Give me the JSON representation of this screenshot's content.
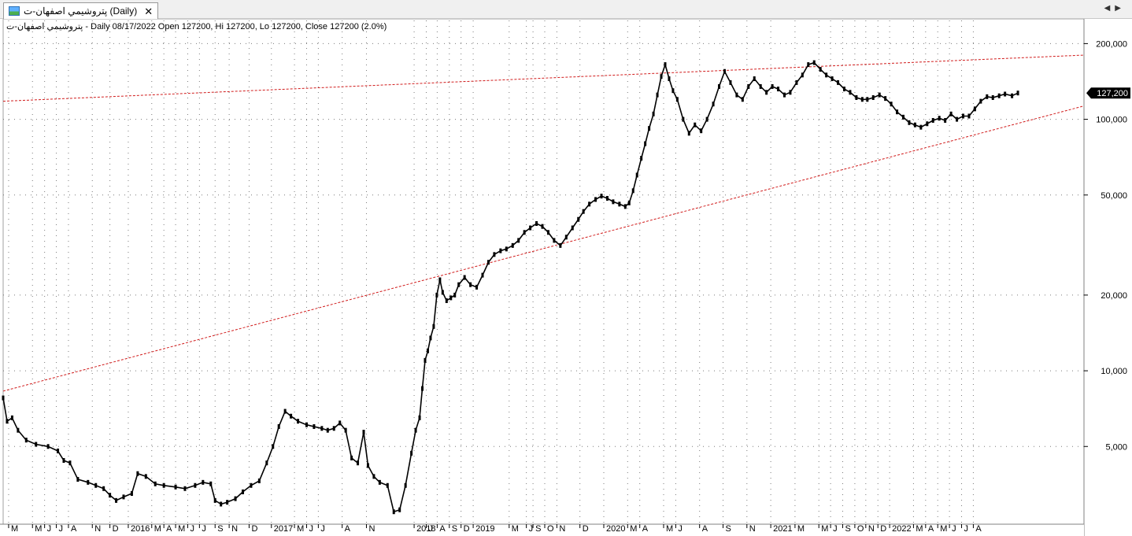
{
  "window": {
    "tab_title": "پتروشيمي اصفهان-ت (Daily)",
    "close_glyph": "✕",
    "scroll_left_glyph": "◀",
    "scroll_right_glyph": "▶"
  },
  "info_line": "پتروشيمي اصفهان-ت - Daily 08/17/2022 Open 127200, Hi 127200, Lo 127200, Close 127200 (2.0%)",
  "colors": {
    "price": "#000000",
    "trendline": "#d11c1c",
    "grid": "#7a7a7a",
    "badge": "#000000"
  },
  "chart_data": {
    "type": "line",
    "title": "",
    "xlabel": "",
    "ylabel": "",
    "y_scale": "log",
    "ylim": [
      2600,
      230000
    ],
    "xlim": [
      "2015-02-15",
      "2022-09-10"
    ],
    "grid": true,
    "last_value_label": "127,200",
    "last_value": 127200,
    "y_ticks": [
      {
        "value": 200000,
        "label": "200,000"
      },
      {
        "value": 100000,
        "label": "100,000"
      },
      {
        "value": 50000,
        "label": "50,000"
      },
      {
        "value": 20000,
        "label": "20,000"
      },
      {
        "value": 10000,
        "label": "10,000"
      },
      {
        "value": 5000,
        "label": "5,000"
      }
    ],
    "x_ticks": [
      {
        "date": "2015-03-01",
        "label": "M"
      },
      {
        "date": "2015-05-01",
        "label": "M"
      },
      {
        "date": "2015-06-01",
        "label": "J"
      },
      {
        "date": "2015-07-01",
        "label": "J"
      },
      {
        "date": "2015-08-01",
        "label": "A"
      },
      {
        "date": "2015-10-01",
        "label": "N"
      },
      {
        "date": "2015-11-15",
        "label": "D"
      },
      {
        "date": "2016-01-01",
        "label": "2016"
      },
      {
        "date": "2016-03-01",
        "label": "M"
      },
      {
        "date": "2016-04-01",
        "label": "A"
      },
      {
        "date": "2016-05-01",
        "label": "M"
      },
      {
        "date": "2016-06-01",
        "label": "J"
      },
      {
        "date": "2016-07-01",
        "label": "J"
      },
      {
        "date": "2016-08-10",
        "label": "S"
      },
      {
        "date": "2016-09-15",
        "label": "N"
      },
      {
        "date": "2016-11-05",
        "label": "D"
      },
      {
        "date": "2017-01-01",
        "label": "2017"
      },
      {
        "date": "2017-03-01",
        "label": "M"
      },
      {
        "date": "2017-04-01",
        "label": "J"
      },
      {
        "date": "2017-05-01",
        "label": "J"
      },
      {
        "date": "2017-07-01",
        "label": "A"
      },
      {
        "date": "2017-09-01",
        "label": "N"
      },
      {
        "date": "2018-01-01",
        "label": "2018"
      },
      {
        "date": "2018-02-01",
        "label": "J"
      },
      {
        "date": "2018-03-01",
        "label": "A"
      },
      {
        "date": "2018-04-01",
        "label": "S"
      },
      {
        "date": "2018-05-01",
        "label": "D"
      },
      {
        "date": "2018-06-01",
        "label": "2019"
      },
      {
        "date": "2018-09-01",
        "label": "M"
      },
      {
        "date": "2018-10-15",
        "label": "J"
      },
      {
        "date": "2018-11-01",
        "label": "S"
      },
      {
        "date": "2018-12-01",
        "label": "O"
      },
      {
        "date": "2019-01-01",
        "label": "N"
      },
      {
        "date": "2019-03-01",
        "label": "D"
      },
      {
        "date": "2019-05-01",
        "label": "2020"
      },
      {
        "date": "2019-07-01",
        "label": "M"
      },
      {
        "date": "2019-08-01",
        "label": "A"
      },
      {
        "date": "2019-10-01",
        "label": "M"
      },
      {
        "date": "2019-11-01",
        "label": "J"
      },
      {
        "date": "2020-01-01",
        "label": "A"
      },
      {
        "date": "2020-03-01",
        "label": "S"
      },
      {
        "date": "2020-05-01",
        "label": "N"
      },
      {
        "date": "2020-07-01",
        "label": "2021"
      },
      {
        "date": "2020-09-01",
        "label": "M"
      },
      {
        "date": "2020-11-01",
        "label": "M"
      },
      {
        "date": "2020-12-01",
        "label": "J"
      },
      {
        "date": "2021-01-01",
        "label": "S"
      },
      {
        "date": "2021-02-01",
        "label": "O"
      },
      {
        "date": "2021-03-01",
        "label": "N"
      },
      {
        "date": "2021-04-01",
        "label": "D"
      },
      {
        "date": "2021-05-01",
        "label": "2022"
      },
      {
        "date": "2021-07-01",
        "label": "M"
      },
      {
        "date": "2021-08-01",
        "label": "A"
      },
      {
        "date": "2021-09-01",
        "label": "M"
      },
      {
        "date": "2021-10-01",
        "label": "J"
      },
      {
        "date": "2021-11-01",
        "label": "J"
      },
      {
        "date": "2021-12-01",
        "label": "A"
      }
    ],
    "series": [
      {
        "points": [
          [
            "2015-02-15",
            7800
          ],
          [
            "2015-02-25",
            6300
          ],
          [
            "2015-03-10",
            6500
          ],
          [
            "2015-03-25",
            5800
          ],
          [
            "2015-04-15",
            5300
          ],
          [
            "2015-05-10",
            5100
          ],
          [
            "2015-06-10",
            5000
          ],
          [
            "2015-07-05",
            4800
          ],
          [
            "2015-07-20",
            4400
          ],
          [
            "2015-08-05",
            4300
          ],
          [
            "2015-08-25",
            3700
          ],
          [
            "2015-09-20",
            3600
          ],
          [
            "2015-10-10",
            3500
          ],
          [
            "2015-10-30",
            3400
          ],
          [
            "2015-11-15",
            3200
          ],
          [
            "2015-12-01",
            3050
          ],
          [
            "2015-12-20",
            3150
          ],
          [
            "2016-01-10",
            3250
          ],
          [
            "2016-01-25",
            3900
          ],
          [
            "2016-02-15",
            3800
          ],
          [
            "2016-03-10",
            3550
          ],
          [
            "2016-04-01",
            3500
          ],
          [
            "2016-05-01",
            3450
          ],
          [
            "2016-05-25",
            3400
          ],
          [
            "2016-06-20",
            3500
          ],
          [
            "2016-07-10",
            3600
          ],
          [
            "2016-07-30",
            3550
          ],
          [
            "2016-08-10",
            3050
          ],
          [
            "2016-08-25",
            2950
          ],
          [
            "2016-09-10",
            3000
          ],
          [
            "2016-10-01",
            3100
          ],
          [
            "2016-10-20",
            3300
          ],
          [
            "2016-11-10",
            3500
          ],
          [
            "2016-12-01",
            3650
          ],
          [
            "2016-12-20",
            4300
          ],
          [
            "2017-01-05",
            5000
          ],
          [
            "2017-01-20",
            6000
          ],
          [
            "2017-02-05",
            6900
          ],
          [
            "2017-02-20",
            6600
          ],
          [
            "2017-03-10",
            6300
          ],
          [
            "2017-04-01",
            6100
          ],
          [
            "2017-04-20",
            6000
          ],
          [
            "2017-05-10",
            5900
          ],
          [
            "2017-05-25",
            5800
          ],
          [
            "2017-06-10",
            5900
          ],
          [
            "2017-06-25",
            6200
          ],
          [
            "2017-07-10",
            5800
          ],
          [
            "2017-07-25",
            4500
          ],
          [
            "2017-08-10",
            4300
          ],
          [
            "2017-08-25",
            5700
          ],
          [
            "2017-09-05",
            4200
          ],
          [
            "2017-09-20",
            3800
          ],
          [
            "2017-10-05",
            3600
          ],
          [
            "2017-10-25",
            3500
          ],
          [
            "2017-11-10",
            2750
          ],
          [
            "2017-11-25",
            2800
          ],
          [
            "2017-12-10",
            3500
          ],
          [
            "2017-12-25",
            4700
          ],
          [
            "2018-01-05",
            5800
          ],
          [
            "2018-01-15",
            6500
          ],
          [
            "2018-01-22",
            8500
          ],
          [
            "2018-01-29",
            11000
          ],
          [
            "2018-02-05",
            12000
          ],
          [
            "2018-02-12",
            13500
          ],
          [
            "2018-02-20",
            15000
          ],
          [
            "2018-02-28",
            20000
          ],
          [
            "2018-03-08",
            23000
          ],
          [
            "2018-03-15",
            20500
          ],
          [
            "2018-03-25",
            19000
          ],
          [
            "2018-04-05",
            19500
          ],
          [
            "2018-04-15",
            20000
          ],
          [
            "2018-04-25",
            22000
          ],
          [
            "2018-05-10",
            23500
          ],
          [
            "2018-05-25",
            22000
          ],
          [
            "2018-06-10",
            21500
          ],
          [
            "2018-06-25",
            24000
          ],
          [
            "2018-07-10",
            27000
          ],
          [
            "2018-07-25",
            29000
          ],
          [
            "2018-08-10",
            30000
          ],
          [
            "2018-08-25",
            30500
          ],
          [
            "2018-09-10",
            31500
          ],
          [
            "2018-09-25",
            33000
          ],
          [
            "2018-10-10",
            35500
          ],
          [
            "2018-10-25",
            37000
          ],
          [
            "2018-11-10",
            38500
          ],
          [
            "2018-11-25",
            37500
          ],
          [
            "2018-12-10",
            35500
          ],
          [
            "2018-12-25",
            33000
          ],
          [
            "2019-01-10",
            31500
          ],
          [
            "2019-01-25",
            34000
          ],
          [
            "2019-02-10",
            37000
          ],
          [
            "2019-02-25",
            40000
          ],
          [
            "2019-03-10",
            43000
          ],
          [
            "2019-03-25",
            46000
          ],
          [
            "2019-04-10",
            48000
          ],
          [
            "2019-04-25",
            49500
          ],
          [
            "2019-05-10",
            48500
          ],
          [
            "2019-05-25",
            47000
          ],
          [
            "2019-06-10",
            46000
          ],
          [
            "2019-06-25",
            45000
          ],
          [
            "2019-07-05",
            46500
          ],
          [
            "2019-07-15",
            52000
          ],
          [
            "2019-07-25",
            60000
          ],
          [
            "2019-08-05",
            70000
          ],
          [
            "2019-08-15",
            80000
          ],
          [
            "2019-08-25",
            92000
          ],
          [
            "2019-09-05",
            105000
          ],
          [
            "2019-09-15",
            125000
          ],
          [
            "2019-09-25",
            148000
          ],
          [
            "2019-10-05",
            165000
          ],
          [
            "2019-10-15",
            145000
          ],
          [
            "2019-10-25",
            130000
          ],
          [
            "2019-11-05",
            120000
          ],
          [
            "2019-11-20",
            100000
          ],
          [
            "2019-12-05",
            88000
          ],
          [
            "2019-12-20",
            95000
          ],
          [
            "2020-01-05",
            90000
          ],
          [
            "2020-01-20",
            100000
          ],
          [
            "2020-02-05",
            115000
          ],
          [
            "2020-02-20",
            135000
          ],
          [
            "2020-03-05",
            155000
          ],
          [
            "2020-03-20",
            140000
          ],
          [
            "2020-04-05",
            125000
          ],
          [
            "2020-04-20",
            120000
          ],
          [
            "2020-05-05",
            135000
          ],
          [
            "2020-05-20",
            145000
          ],
          [
            "2020-06-05",
            135000
          ],
          [
            "2020-06-20",
            128000
          ],
          [
            "2020-07-05",
            135000
          ],
          [
            "2020-07-20",
            132000
          ],
          [
            "2020-08-05",
            125000
          ],
          [
            "2020-08-20",
            128000
          ],
          [
            "2020-09-05",
            140000
          ],
          [
            "2020-09-20",
            150000
          ],
          [
            "2020-10-05",
            165000
          ],
          [
            "2020-10-20",
            168000
          ],
          [
            "2020-11-05",
            158000
          ],
          [
            "2020-11-20",
            150000
          ],
          [
            "2020-12-05",
            145000
          ],
          [
            "2020-12-20",
            140000
          ],
          [
            "2021-01-05",
            132000
          ],
          [
            "2021-01-20",
            128000
          ],
          [
            "2021-02-05",
            122000
          ],
          [
            "2021-02-20",
            120000
          ],
          [
            "2021-03-05",
            120000
          ],
          [
            "2021-03-20",
            122000
          ],
          [
            "2021-04-05",
            125000
          ],
          [
            "2021-04-20",
            121000
          ],
          [
            "2021-05-05",
            115000
          ],
          [
            "2021-05-20",
            107000
          ],
          [
            "2021-06-05",
            102000
          ],
          [
            "2021-06-20",
            97000
          ],
          [
            "2021-07-05",
            95000
          ],
          [
            "2021-07-20",
            93000
          ],
          [
            "2021-08-05",
            96000
          ],
          [
            "2021-08-20",
            99000
          ],
          [
            "2021-09-05",
            101000
          ],
          [
            "2021-09-20",
            99000
          ],
          [
            "2021-10-05",
            105000
          ],
          [
            "2021-10-20",
            100000
          ],
          [
            "2021-11-05",
            103000
          ],
          [
            "2021-11-20",
            103000
          ],
          [
            "2021-12-05",
            110000
          ],
          [
            "2021-12-20",
            118000
          ],
          [
            "2022-01-05",
            123000
          ],
          [
            "2022-01-20",
            122000
          ],
          [
            "2022-02-05",
            124000
          ],
          [
            "2022-02-20",
            126000
          ],
          [
            "2022-03-10",
            124000
          ],
          [
            "2022-03-25",
            127200
          ]
        ]
      }
    ],
    "trendlines": [
      {
        "start": [
          "2015-02-15",
          8300
        ],
        "end": [
          "2022-09-10",
          113000
        ]
      },
      {
        "start": [
          "2015-02-15",
          118000
        ],
        "end": [
          "2022-09-10",
          180000
        ]
      }
    ]
  }
}
